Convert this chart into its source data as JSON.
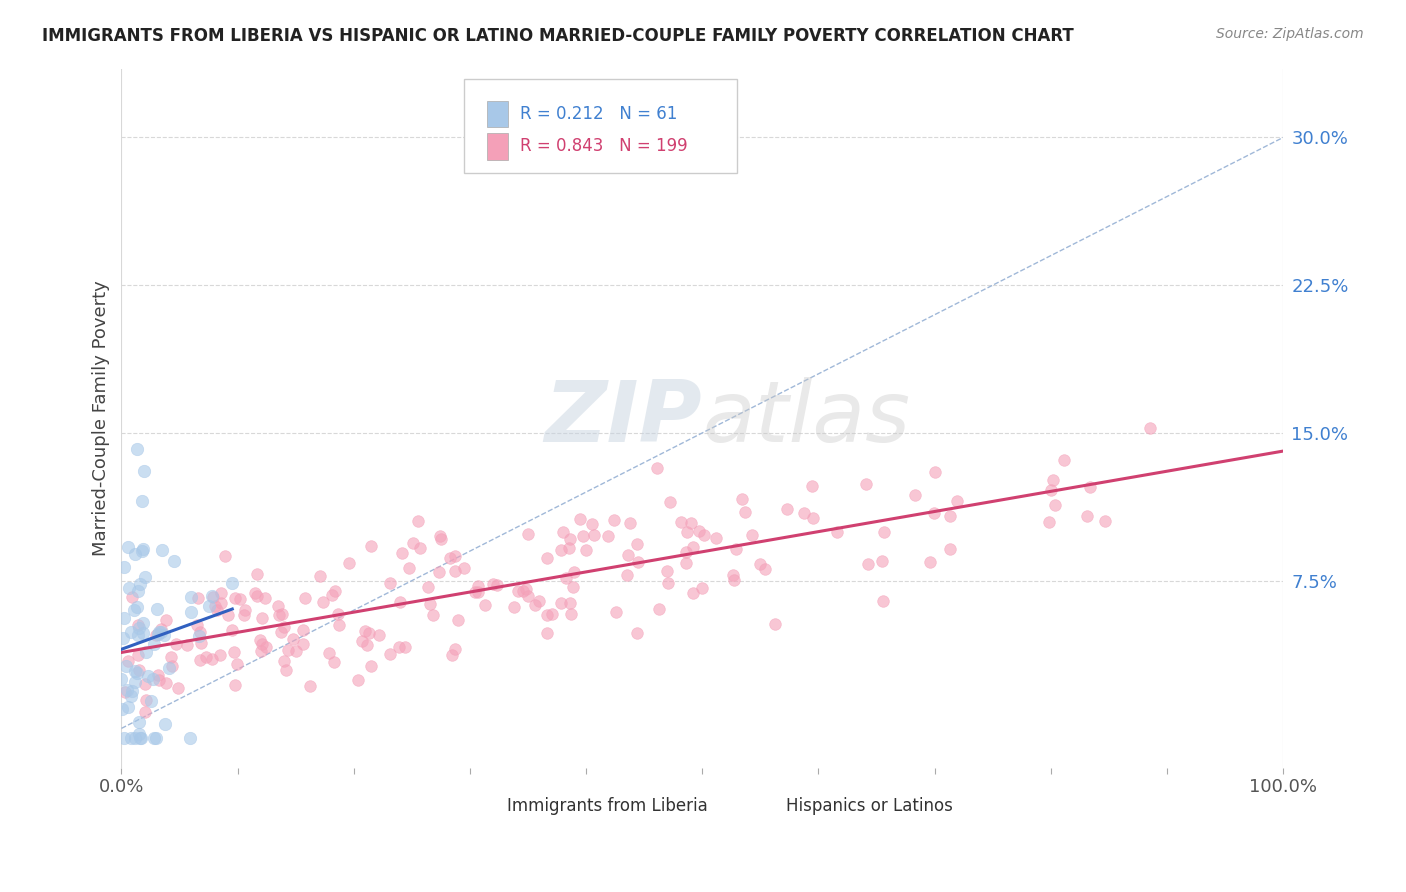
{
  "title": "IMMIGRANTS FROM LIBERIA VS HISPANIC OR LATINO MARRIED-COUPLE FAMILY POVERTY CORRELATION CHART",
  "source": "Source: ZipAtlas.com",
  "ylabel": "Married-Couple Family Poverty",
  "legend": {
    "series1_label": "Immigrants from Liberia",
    "series2_label": "Hispanics or Latinos",
    "R1": "0.212",
    "N1": "61",
    "R2": "0.843",
    "N2": "199"
  },
  "blue_color": "#a8c8e8",
  "pink_color": "#f4a0b8",
  "blue_line_color": "#3060c0",
  "pink_line_color": "#d04070",
  "diag_color": "#a0b8d8",
  "watermark_zip": "ZIP",
  "watermark_atlas": "atlas",
  "background_color": "#ffffff",
  "grid_color": "#d8d8d8",
  "ytick_color": "#4080d0",
  "xtick_color": "#555555",
  "xlim": [
    0.0,
    1.0
  ],
  "ylim": [
    -0.02,
    0.335
  ],
  "yticks": [
    0.075,
    0.15,
    0.225,
    0.3
  ],
  "ytick_labels": [
    "7.5%",
    "15.0%",
    "22.5%",
    "30.0%"
  ],
  "xticks": [
    0.0,
    0.1,
    0.2,
    0.3,
    0.4,
    0.5,
    0.6,
    0.7,
    0.8,
    0.9,
    1.0
  ],
  "xtick_labels": [
    "0.0%",
    "",
    "",
    "",
    "",
    "",
    "",
    "",
    "",
    "",
    "100.0%"
  ]
}
